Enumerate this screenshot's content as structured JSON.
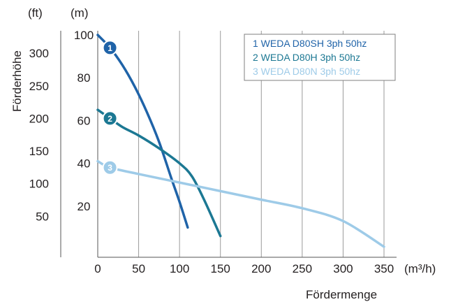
{
  "chart_data": {
    "type": "line",
    "title": "",
    "xlabel": "Fördermenge",
    "ylabel": "Förderhöhe",
    "x_unit": "(m³/h)",
    "y_unit_left": "(ft)",
    "y_unit_right": "(m)",
    "xlim": [
      0,
      350
    ],
    "ylim_m": [
      0,
      100
    ],
    "x_ticks": [
      0,
      50,
      100,
      150,
      200,
      250,
      300,
      350
    ],
    "y_ticks_m": [
      20,
      40,
      60,
      80,
      100
    ],
    "y_ticks_ft": [
      50,
      100,
      150,
      200,
      250,
      300
    ],
    "x_tick_labels": [
      "0",
      "50",
      "100",
      "150",
      "200",
      "250",
      "300",
      "350"
    ],
    "y_tick_labels_m": [
      "20",
      "40",
      "60",
      "80",
      "100"
    ],
    "y_tick_labels_ft": [
      "50",
      "100",
      "150",
      "200",
      "250",
      "300"
    ],
    "grid": "vertical",
    "legend_position": "top-right",
    "series": [
      {
        "name": "1 WEDA D80SH 3ph 50hz",
        "badge": "1",
        "color": "#1f63a8",
        "x": [
          0,
          15,
          30,
          45,
          60,
          75,
          90,
          100,
          110
        ],
        "y": [
          100,
          94,
          86,
          76,
          64,
          50,
          33,
          22,
          10
        ]
      },
      {
        "name": "2 WEDA D80H 3ph 50hz",
        "badge": "2",
        "color": "#1c7893",
        "x": [
          0,
          15,
          30,
          50,
          75,
          100,
          115,
          130,
          150
        ],
        "y": [
          65,
          61,
          57,
          53,
          47,
          40,
          34,
          23,
          6
        ]
      },
      {
        "name": "3 WEDA D80N 3ph 50hz",
        "badge": "3",
        "color": "#9ecbe8",
        "x": [
          0,
          15,
          50,
          100,
          150,
          200,
          250,
          300,
          350
        ],
        "y": [
          41,
          38,
          35,
          31,
          27,
          23,
          19,
          13,
          1
        ]
      }
    ]
  }
}
